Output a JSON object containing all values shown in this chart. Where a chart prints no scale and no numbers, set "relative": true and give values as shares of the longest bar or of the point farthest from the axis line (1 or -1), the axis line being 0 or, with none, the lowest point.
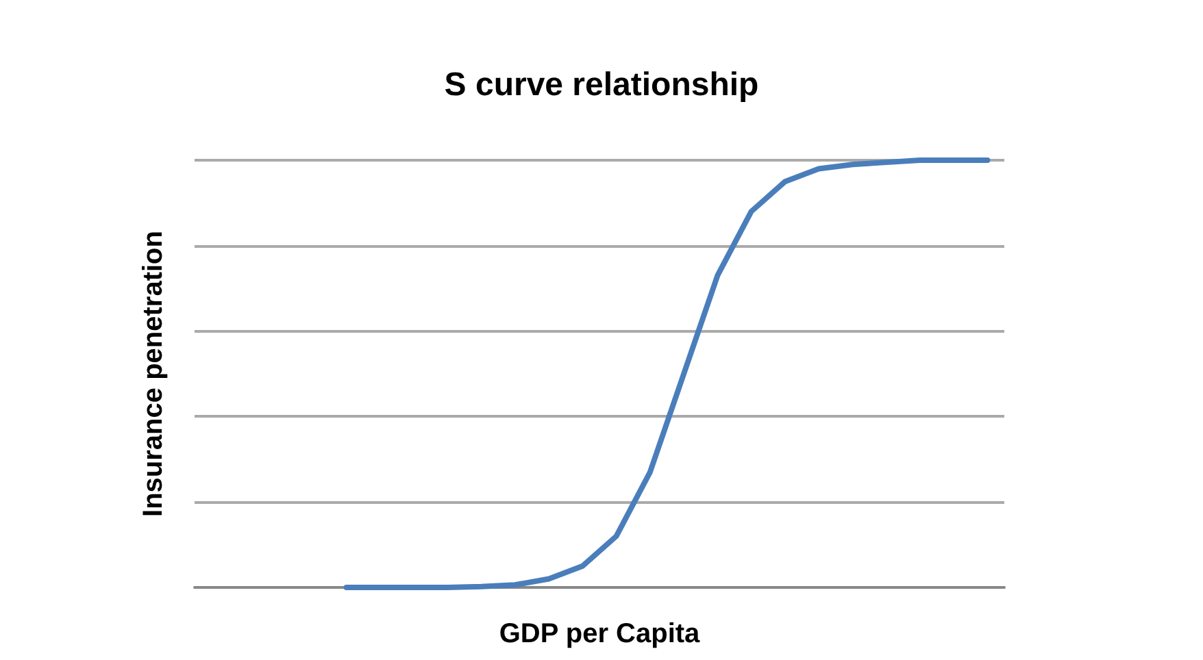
{
  "chart_data": {
    "type": "line",
    "title": "S curve relationship",
    "xlabel": "GDP per Capita",
    "ylabel": "Insurance penetration",
    "relative": true,
    "grid": "y",
    "marker": "none",
    "line_style": "solid",
    "categories": [
      null,
      null,
      null,
      null,
      null,
      null,
      null,
      null,
      null,
      null,
      null,
      null,
      null,
      null,
      null,
      null,
      null,
      null,
      null,
      null,
      null,
      null,
      null,
      null
    ],
    "series": [
      {
        "color": "#4a7ebb",
        "values": [
          null,
          null,
          null,
          null,
          0,
          0,
          0,
          0,
          0.002,
          0.006,
          0.02,
          0.05,
          0.12,
          0.27,
          0.5,
          0.73,
          0.88,
          0.95,
          0.98,
          0.99,
          0.995,
          1,
          1,
          1
        ]
      }
    ]
  }
}
